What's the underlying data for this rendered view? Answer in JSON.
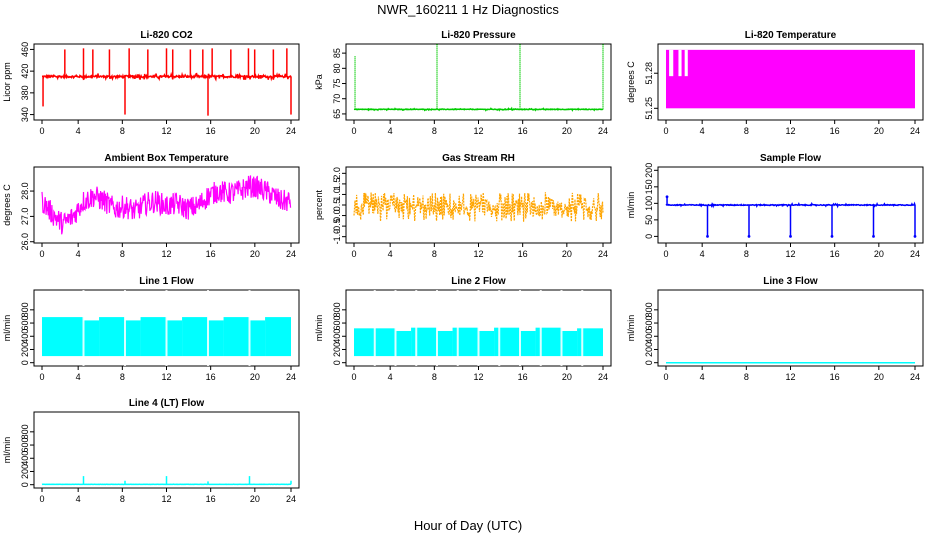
{
  "figure": {
    "title": "NWR_160211  1 Hz Diagnostics",
    "xlabel": "Hour of Day (UTC)"
  },
  "colors": {
    "co2": "#ff0000",
    "pressure": "#00cc00",
    "temperature": "#ff00ff",
    "ambient": "#ff00ff",
    "rh": "#ffa500",
    "sample_flow": "#0000ff",
    "line_flow": "#00ffff"
  },
  "chart_data": [
    {
      "type": "line",
      "title": "Li-820 CO2",
      "ylabel": "Licor ppm",
      "xlim": [
        0,
        24
      ],
      "ylim": [
        330,
        470
      ],
      "xticks": [
        0,
        4,
        8,
        12,
        16,
        20,
        24
      ],
      "yticks": [
        340,
        380,
        420,
        460
      ],
      "color_key": "co2",
      "series": [
        {
          "baseline": 410,
          "noise": 6,
          "spikes": [
            [
              0.1,
              355
            ],
            [
              2.2,
              460
            ],
            [
              4.0,
              462
            ],
            [
              4.9,
              460
            ],
            [
              6.5,
              460
            ],
            [
              8.0,
              340
            ],
            [
              8.4,
              462
            ],
            [
              10.2,
              460
            ],
            [
              12.0,
              462
            ],
            [
              12.6,
              460
            ],
            [
              14.3,
              460
            ],
            [
              15.5,
              460
            ],
            [
              16.0,
              338
            ],
            [
              16.4,
              462
            ],
            [
              18.2,
              460
            ],
            [
              19.9,
              462
            ],
            [
              20.5,
              460
            ],
            [
              22.3,
              460
            ],
            [
              23.6,
              462
            ],
            [
              24.0,
              340
            ]
          ]
        }
      ]
    },
    {
      "type": "line",
      "title": "Li-820 Pressure",
      "ylabel": "kPa",
      "xlim": [
        0,
        24
      ],
      "ylim": [
        63,
        88
      ],
      "xticks": [
        0,
        4,
        8,
        12,
        16,
        20,
        24
      ],
      "yticks": [
        65,
        70,
        75,
        80,
        85
      ],
      "color_key": "pressure",
      "series": [
        {
          "baseline": 66.5,
          "noise": 0.3,
          "spikes": [
            [
              0.1,
              84
            ],
            [
              8.0,
              88
            ],
            [
              16.0,
              88
            ],
            [
              24.0,
              88
            ]
          ]
        }
      ]
    },
    {
      "type": "area",
      "title": "Li-820 Temperature",
      "ylabel": "degrees C",
      "xlim": [
        0,
        24
      ],
      "ylim": [
        51.24,
        51.305
      ],
      "xticks": [
        0,
        4,
        8,
        12,
        16,
        20,
        24
      ],
      "yticks": [
        51.25,
        51.28
      ],
      "color_key": "temperature",
      "series": [
        {
          "low": 51.25,
          "high": 51.3,
          "gaps": [
            [
              0.3,
              0.7
            ],
            [
              1.2,
              1.5
            ],
            [
              1.8,
              2.1
            ]
          ]
        }
      ]
    },
    {
      "type": "line",
      "title": "Ambient Box Temperature",
      "ylabel": "degrees C",
      "xlim": [
        0,
        24
      ],
      "ylim": [
        25.95,
        28.95
      ],
      "xticks": [
        0,
        4,
        8,
        12,
        16,
        20,
        24
      ],
      "yticks": [
        26.0,
        27.0,
        28.0
      ],
      "color_key": "ambient",
      "series": [
        {
          "x": [
            0,
            1,
            2,
            3,
            4,
            5,
            6,
            7,
            8,
            9,
            10,
            11,
            12,
            13,
            14,
            15,
            16,
            17,
            18,
            19,
            20,
            21,
            22,
            23,
            24
          ],
          "y": [
            27.6,
            27.1,
            26.7,
            27.0,
            27.6,
            27.8,
            27.6,
            27.3,
            27.4,
            27.2,
            27.5,
            27.6,
            27.4,
            27.5,
            27.3,
            27.4,
            27.8,
            28.0,
            27.9,
            28.0,
            28.2,
            28.1,
            27.9,
            27.6,
            27.6
          ],
          "noise": 0.45
        }
      ]
    },
    {
      "type": "line",
      "title": "Gas Stream RH",
      "ylabel": "percent",
      "xlim": [
        0,
        24
      ],
      "ylim": [
        -1.3,
        2.3
      ],
      "xticks": [
        0,
        4,
        8,
        12,
        16,
        20,
        24
      ],
      "yticks": [
        -1.0,
        -0.5,
        0.0,
        0.5,
        1.0,
        1.5,
        2.0
      ],
      "color_key": "rh",
      "series": [
        {
          "center": 0.4,
          "noise": 0.7
        }
      ]
    },
    {
      "type": "line",
      "title": "Sample Flow",
      "ylabel": "ml/min",
      "xlim": [
        0,
        24
      ],
      "ylim": [
        -20,
        210
      ],
      "xticks": [
        0,
        4,
        8,
        12,
        16,
        20,
        24
      ],
      "yticks": [
        0,
        50,
        100,
        150,
        200
      ],
      "color_key": "sample_flow",
      "series": [
        {
          "baseline": 95,
          "noise": 4,
          "spikes": [
            [
              0.1,
              120
            ],
            [
              4.0,
              0
            ],
            [
              8.0,
              0
            ],
            [
              12.0,
              0
            ],
            [
              16.0,
              0
            ],
            [
              20.0,
              0
            ],
            [
              24.0,
              0
            ]
          ]
        }
      ]
    },
    {
      "type": "area",
      "title": "Line 1 Flow",
      "ylabel": "ml/min",
      "xlim": [
        0,
        24
      ],
      "ylim": [
        -50,
        1100
      ],
      "xticks": [
        0,
        4,
        8,
        12,
        16,
        20,
        24
      ],
      "yticks": [
        0,
        200,
        400,
        600,
        800
      ],
      "color_key": "line_flow",
      "series": [
        {
          "low": 100,
          "segments": [
            [
              0,
              4,
              690
            ],
            [
              4,
              5.5,
              640
            ],
            [
              5.5,
              8,
              690
            ],
            [
              8,
              9.5,
              640
            ],
            [
              9.5,
              12,
              690
            ],
            [
              12,
              13.5,
              640
            ],
            [
              13.5,
              16,
              690
            ],
            [
              16,
              17.5,
              640
            ],
            [
              17.5,
              20,
              690
            ],
            [
              20,
              21.5,
              640
            ],
            [
              21.5,
              24,
              690
            ]
          ],
          "gaps": [
            4.0,
            8.0,
            12.0,
            16.0,
            20.0
          ]
        }
      ]
    },
    {
      "type": "area",
      "title": "Line 2 Flow",
      "ylabel": "ml/min",
      "xlim": [
        0,
        24
      ],
      "ylim": [
        -50,
        1100
      ],
      "xticks": [
        0,
        4,
        8,
        12,
        16,
        20,
        24
      ],
      "yticks": [
        0,
        200,
        400,
        600,
        800
      ],
      "color_key": "line_flow",
      "series": [
        {
          "low": 100,
          "segments": [
            [
              0,
              4,
              520
            ],
            [
              4,
              5.5,
              480
            ],
            [
              5.5,
              8,
              530
            ],
            [
              8,
              9.5,
              480
            ],
            [
              9.5,
              12,
              530
            ],
            [
              12,
              13.5,
              480
            ],
            [
              13.5,
              16,
              530
            ],
            [
              16,
              17.5,
              480
            ],
            [
              17.5,
              20,
              530
            ],
            [
              20,
              21.5,
              480
            ],
            [
              21.5,
              24,
              520
            ]
          ],
          "gaps": [
            2.0,
            4.0,
            6.0,
            8.0,
            10.0,
            12.0,
            14.0,
            16.0,
            18.0,
            20.0,
            22.0
          ]
        }
      ]
    },
    {
      "type": "line",
      "title": "Line 3 Flow",
      "ylabel": "ml/min",
      "xlim": [
        0,
        24
      ],
      "ylim": [
        -50,
        1100
      ],
      "xticks": [
        0,
        4,
        8,
        12,
        16,
        20,
        24
      ],
      "yticks": [
        0,
        200,
        400,
        600,
        800
      ],
      "color_key": "line_flow",
      "series": [
        {
          "baseline": 0,
          "noise": 0,
          "spikes": []
        }
      ]
    },
    {
      "type": "line",
      "title": "Line 4 (LT) Flow",
      "ylabel": "ml/min",
      "xlim": [
        0,
        24
      ],
      "ylim": [
        -50,
        1100
      ],
      "xticks": [
        0,
        4,
        8,
        12,
        16,
        20,
        24
      ],
      "yticks": [
        0,
        200,
        400,
        600,
        800
      ],
      "color_key": "line_flow",
      "series": [
        {
          "baseline": 5,
          "noise": 2,
          "spikes": [
            [
              4.0,
              130
            ],
            [
              8.0,
              60
            ],
            [
              12.0,
              130
            ],
            [
              16.0,
              50
            ],
            [
              20.0,
              130
            ],
            [
              24.0,
              60
            ]
          ]
        }
      ]
    }
  ]
}
